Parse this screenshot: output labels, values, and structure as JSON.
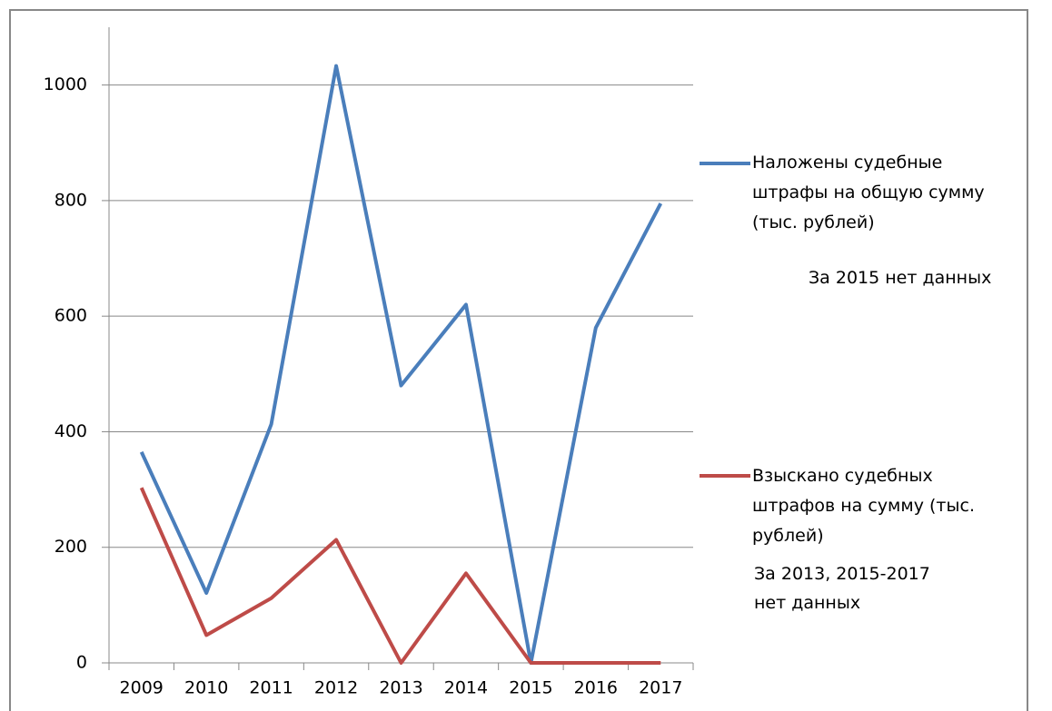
{
  "chart_data": {
    "type": "line",
    "categories": [
      "2009",
      "2010",
      "2011",
      "2012",
      "2013",
      "2014",
      "2015",
      "2016",
      "2017"
    ],
    "series": [
      {
        "name": "Наложены судебные штрафы на общую сумму (тыс. рублей)",
        "color": "#4a7ebb",
        "values": [
          365,
          121,
          413,
          1033,
          480,
          620,
          0,
          580,
          795
        ]
      },
      {
        "name": "Взыскано судебных штрафов на сумму (тыс. рублей)",
        "color": "#be4b48",
        "values": [
          303,
          48,
          112,
          213,
          0,
          155,
          0,
          0,
          0
        ]
      }
    ],
    "annotations": [
      "За 2015 нет данных",
      "За 2013, 2015-2017 нет данных"
    ],
    "ylim": [
      0,
      1100
    ],
    "yticks": [
      0,
      200,
      400,
      600,
      800,
      1000
    ],
    "grid": true,
    "legend": "right"
  }
}
